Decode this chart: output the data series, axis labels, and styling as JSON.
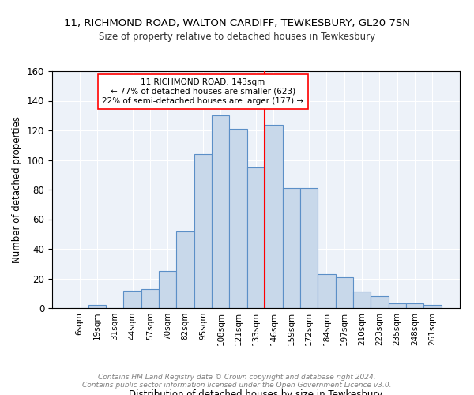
{
  "title1": "11, RICHMOND ROAD, WALTON CARDIFF, TEWKESBURY, GL20 7SN",
  "title2": "Size of property relative to detached houses in Tewkesbury",
  "xlabel": "Distribution of detached houses by size in Tewkesbury",
  "ylabel": "Number of detached properties",
  "categories": [
    "6sqm",
    "19sqm",
    "31sqm",
    "44sqm",
    "57sqm",
    "70sqm",
    "82sqm",
    "95sqm",
    "108sqm",
    "121sqm",
    "133sqm",
    "146sqm",
    "159sqm",
    "172sqm",
    "184sqm",
    "197sqm",
    "210sqm",
    "223sqm",
    "235sqm",
    "248sqm",
    "261sqm"
  ],
  "bar_heights": [
    0,
    2,
    0,
    12,
    13,
    25,
    52,
    104,
    130,
    121,
    95,
    124,
    81,
    81,
    23,
    21,
    11,
    8,
    3,
    3,
    2
  ],
  "bar_color": "#c8d8ea",
  "bar_edge_color": "#5b8fc7",
  "vline_color": "red",
  "vline_pos": 10.5,
  "annotation_text": "11 RICHMOND ROAD: 143sqm\n← 77% of detached houses are smaller (623)\n22% of semi-detached houses are larger (177) →",
  "ylim": [
    0,
    160
  ],
  "yticks": [
    0,
    20,
    40,
    60,
    80,
    100,
    120,
    140,
    160
  ],
  "background_color": "#edf2f9",
  "footer1": "Contains HM Land Registry data © Crown copyright and database right 2024.",
  "footer2": "Contains public sector information licensed under the Open Government Licence v3.0."
}
